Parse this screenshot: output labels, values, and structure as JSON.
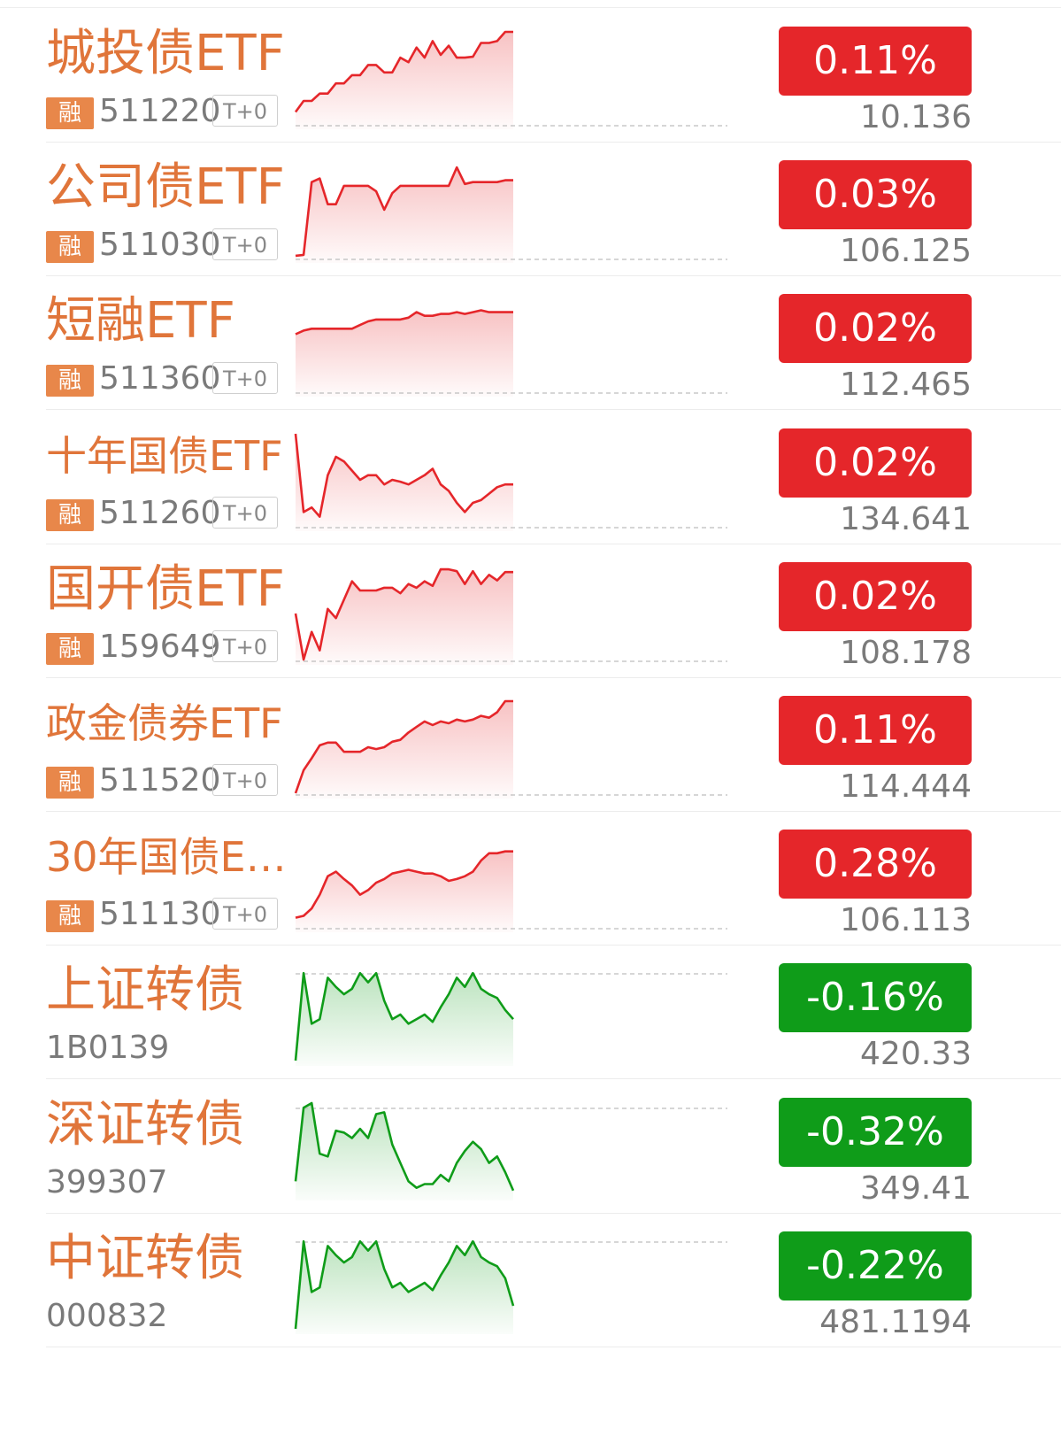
{
  "colors": {
    "up": "#e5262a",
    "down": "#0f9c19",
    "name": "#e0753a",
    "badge": "#e8874a"
  },
  "rows": [
    {
      "name": "城投债ETF",
      "badge": "融",
      "code": "511220",
      "tag": "T+0",
      "change": "0.11%",
      "price": "10.136",
      "dir": "up",
      "spark": [
        0.13,
        0.25,
        0.25,
        0.33,
        0.33,
        0.44,
        0.44,
        0.53,
        0.53,
        0.64,
        0.64,
        0.56,
        0.56,
        0.72,
        0.67,
        0.83,
        0.72,
        0.9,
        0.75,
        0.85,
        0.72,
        0.72,
        0.73,
        0.88,
        0.88,
        0.9,
        1.0,
        1.0
      ]
    },
    {
      "name": "公司债ETF",
      "badge": "融",
      "code": "511030",
      "tag": "T+0",
      "change": "0.03%",
      "price": "106.125",
      "dir": "up",
      "spark": [
        0.02,
        0.03,
        0.82,
        0.86,
        0.58,
        0.58,
        0.78,
        0.78,
        0.78,
        0.78,
        0.72,
        0.52,
        0.7,
        0.78,
        0.78,
        0.78,
        0.78,
        0.78,
        0.78,
        0.78,
        0.98,
        0.8,
        0.82,
        0.82,
        0.82,
        0.82,
        0.84,
        0.84
      ]
    },
    {
      "name": "短融ETF",
      "badge": "融",
      "code": "511360",
      "tag": "T+0",
      "change": "0.02%",
      "price": "112.465",
      "dir": "up",
      "spark": [
        0.62,
        0.66,
        0.68,
        0.68,
        0.68,
        0.68,
        0.68,
        0.68,
        0.72,
        0.76,
        0.78,
        0.78,
        0.78,
        0.78,
        0.8,
        0.86,
        0.82,
        0.82,
        0.84,
        0.84,
        0.86,
        0.84,
        0.86,
        0.88,
        0.86,
        0.86,
        0.86,
        0.86
      ]
    },
    {
      "name": "十年国债ETF",
      "badge": "融",
      "code": "511260",
      "tag": "T+0",
      "change": "0.02%",
      "price": "134.641",
      "dir": "up",
      "small": true,
      "spark": [
        1.0,
        0.15,
        0.2,
        0.1,
        0.55,
        0.75,
        0.7,
        0.6,
        0.5,
        0.55,
        0.55,
        0.45,
        0.5,
        0.48,
        0.45,
        0.5,
        0.55,
        0.62,
        0.45,
        0.38,
        0.25,
        0.15,
        0.25,
        0.28,
        0.35,
        0.42,
        0.45,
        0.45
      ]
    },
    {
      "name": "国开债ETF",
      "badge": "融",
      "code": "159649",
      "tag": "T+0",
      "change": "0.02%",
      "price": "108.178",
      "dir": "up",
      "spark": [
        0.5,
        0.0,
        0.3,
        0.1,
        0.55,
        0.45,
        0.65,
        0.85,
        0.75,
        0.75,
        0.75,
        0.78,
        0.78,
        0.72,
        0.82,
        0.78,
        0.85,
        0.8,
        0.98,
        0.98,
        0.96,
        0.82,
        0.96,
        0.82,
        0.92,
        0.86,
        0.95,
        0.95
      ]
    },
    {
      "name": "政金债券ETF",
      "badge": "融",
      "code": "511520",
      "tag": "T+0",
      "change": "0.11%",
      "price": "114.444",
      "dir": "up",
      "small": true,
      "spark": [
        0.0,
        0.25,
        0.38,
        0.52,
        0.55,
        0.55,
        0.45,
        0.45,
        0.45,
        0.5,
        0.48,
        0.5,
        0.56,
        0.58,
        0.66,
        0.72,
        0.78,
        0.74,
        0.78,
        0.76,
        0.8,
        0.78,
        0.8,
        0.84,
        0.82,
        0.88,
        1.0,
        1.0
      ]
    },
    {
      "name": "30年国债ET...",
      "badge": "融",
      "code": "511130",
      "tag": "T+0",
      "change": "0.28%",
      "price": "106.113",
      "dir": "up",
      "small": true,
      "spark": [
        0.1,
        0.12,
        0.2,
        0.35,
        0.55,
        0.6,
        0.52,
        0.45,
        0.35,
        0.4,
        0.48,
        0.52,
        0.58,
        0.6,
        0.62,
        0.6,
        0.58,
        0.58,
        0.55,
        0.5,
        0.52,
        0.55,
        0.6,
        0.72,
        0.8,
        0.8,
        0.82,
        0.82
      ]
    },
    {
      "name": "上证转债",
      "badge": "",
      "code": "1B0139",
      "tag": "",
      "change": "-0.16%",
      "price": "420.33",
      "dir": "down",
      "spark": [
        0.0,
        0.95,
        0.4,
        0.45,
        0.9,
        0.8,
        0.72,
        0.78,
        0.95,
        0.85,
        0.95,
        0.65,
        0.45,
        0.5,
        0.4,
        0.45,
        0.5,
        0.42,
        0.58,
        0.72,
        0.9,
        0.8,
        0.95,
        0.78,
        0.72,
        0.68,
        0.55,
        0.45
      ]
    },
    {
      "name": "深证转债",
      "badge": "",
      "code": "399307",
      "tag": "",
      "change": "-0.32%",
      "price": "349.41",
      "dir": "down",
      "spark": [
        0.15,
        0.95,
        1.0,
        0.45,
        0.42,
        0.7,
        0.68,
        0.62,
        0.72,
        0.62,
        0.88,
        0.9,
        0.55,
        0.35,
        0.15,
        0.08,
        0.12,
        0.12,
        0.22,
        0.15,
        0.35,
        0.48,
        0.58,
        0.5,
        0.35,
        0.42,
        0.25,
        0.05
      ]
    },
    {
      "name": "中证转债",
      "badge": "",
      "code": "000832",
      "tag": "",
      "change": "-0.22%",
      "price": "481.1194",
      "dir": "down",
      "spark": [
        0.0,
        0.95,
        0.4,
        0.45,
        0.9,
        0.8,
        0.72,
        0.78,
        0.95,
        0.85,
        0.95,
        0.65,
        0.45,
        0.5,
        0.4,
        0.45,
        0.5,
        0.42,
        0.58,
        0.72,
        0.9,
        0.8,
        0.95,
        0.78,
        0.72,
        0.68,
        0.55,
        0.25
      ]
    }
  ]
}
